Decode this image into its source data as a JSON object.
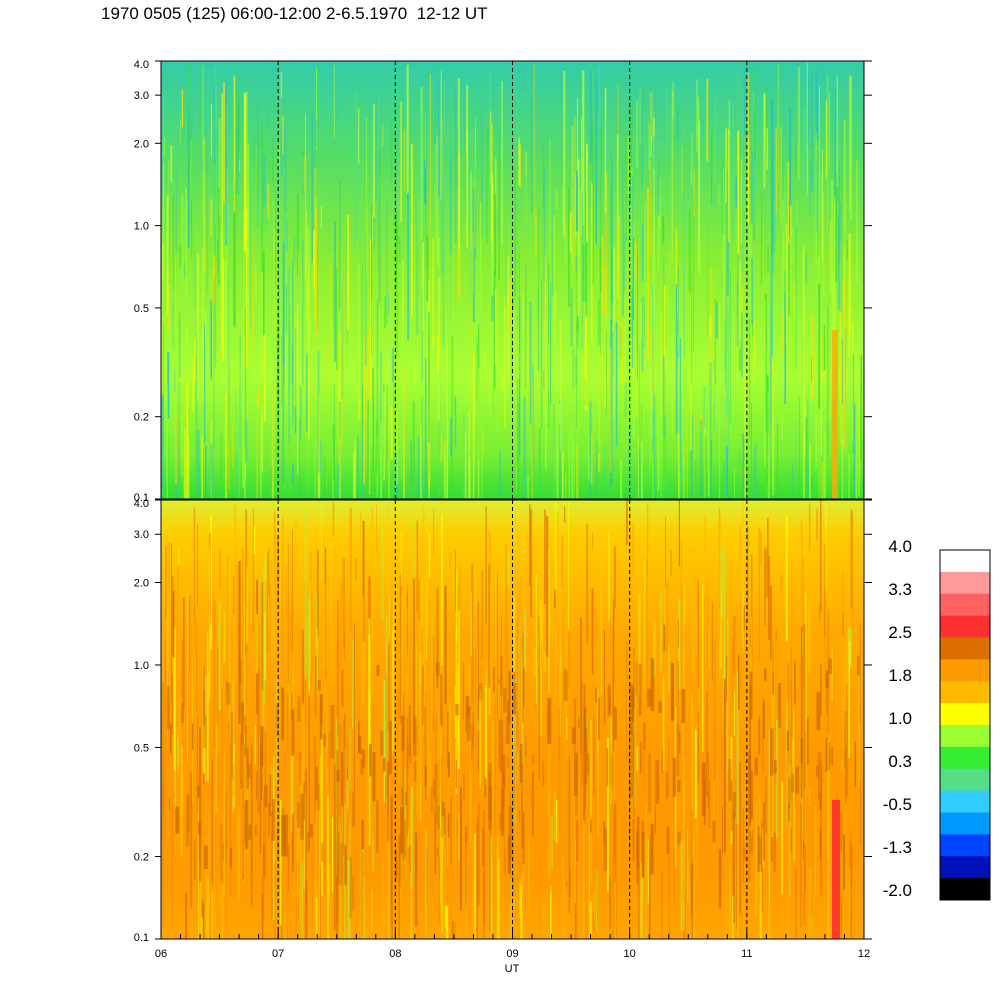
{
  "title": "1970 0505 (125) 06:00-12:00 2-6.5.1970  12-12 UT",
  "chart_data": [
    {
      "type": "heatmap",
      "panel": "top",
      "x_range": [
        "06",
        "12"
      ],
      "y_range": [
        0.1,
        4.0
      ],
      "y_scale": "log",
      "y_ticks": [
        "4.0",
        "3.0",
        "2.0",
        "1.0",
        "0.5",
        "0.2",
        "0.1"
      ],
      "y_tick_values": [
        4.0,
        3.0,
        2.0,
        1.0,
        0.5,
        0.2,
        0.1
      ],
      "dominant_levels": [
        "0.3",
        "1.0"
      ],
      "hour_markers": [
        "07",
        "08",
        "09",
        "10",
        "11"
      ]
    },
    {
      "type": "heatmap",
      "panel": "bottom",
      "x_range": [
        "06",
        "12"
      ],
      "y_range": [
        0.1,
        4.0
      ],
      "y_scale": "log",
      "y_ticks": [
        "4.0",
        "3.0",
        "2.0",
        "1.0",
        "0.5",
        "0.2",
        "0.1"
      ],
      "y_tick_values": [
        4.0,
        3.0,
        2.0,
        1.0,
        0.5,
        0.2,
        0.1
      ],
      "dominant_levels": [
        "1.0",
        "1.8"
      ],
      "hour_markers": [
        "07",
        "08",
        "09",
        "10",
        "11"
      ]
    }
  ],
  "x_axis": {
    "label": "UT",
    "ticks": [
      "06",
      "07",
      "08",
      "09",
      "10",
      "11",
      "12"
    ]
  },
  "colorbar": {
    "labels": [
      "4.0",
      "3.3",
      "2.5",
      "1.8",
      "1.0",
      "0.3",
      "-0.5",
      "-1.3",
      "-2.0"
    ],
    "colors": [
      "#ffffff",
      "#ff9a9a",
      "#ff6060",
      "#ff3030",
      "#dd6e00",
      "#ff9a00",
      "#ffbb00",
      "#ffff00",
      "#99ff33",
      "#33ee33",
      "#55dd88",
      "#33ccff",
      "#0099ff",
      "#0044ff",
      "#0011bb",
      "#000000"
    ]
  }
}
